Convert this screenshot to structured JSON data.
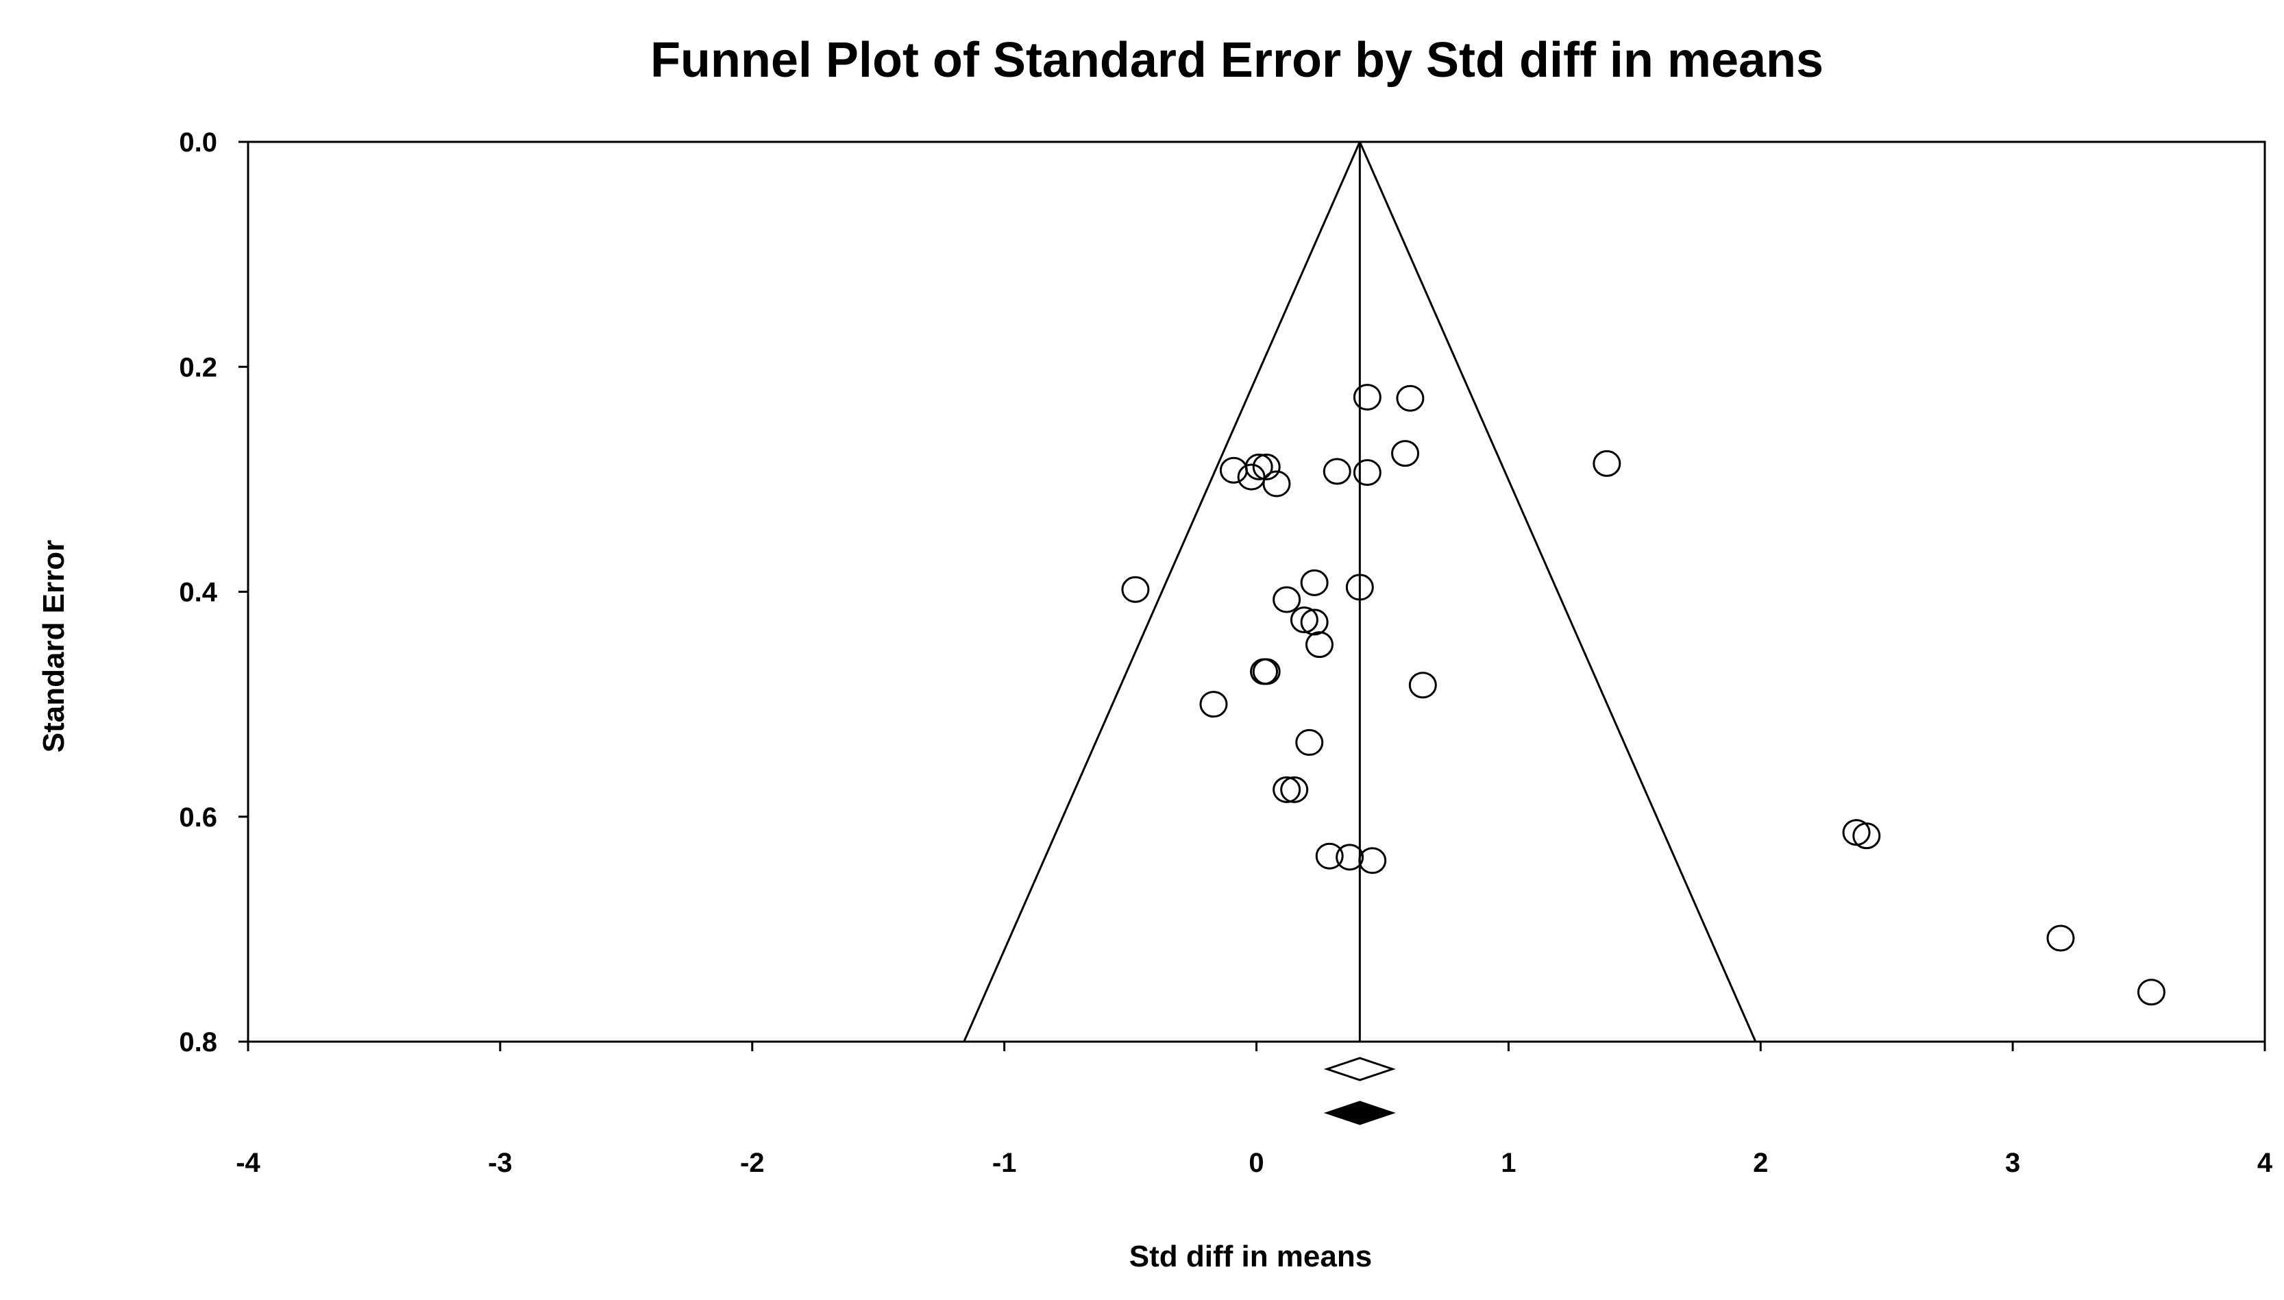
{
  "chart_data": {
    "type": "scatter",
    "title": "Funnel Plot of Standard Error by Std diff in means",
    "xlabel": "Std diff in means",
    "ylabel": "Standard Error",
    "xlim": [
      -4,
      4
    ],
    "ylim": [
      0.0,
      0.8
    ],
    "y_inverted": true,
    "x_ticks": [
      "-4",
      "-3",
      "-2",
      "-1",
      "0",
      "1",
      "2",
      "3",
      "4"
    ],
    "y_ticks": [
      "0.0",
      "0.2",
      "0.4",
      "0.6",
      "0.8"
    ],
    "grid": false,
    "pooled_estimate": 0.41,
    "funnel_limits_at_max_se": [
      -1.16,
      1.98
    ],
    "summary_diamonds": [
      {
        "kind": "observed",
        "fill": "#ffffff",
        "center": 0.41,
        "lower": 0.28,
        "upper": 0.54
      },
      {
        "kind": "adjusted",
        "fill": "#000000",
        "center": 0.41,
        "lower": 0.28,
        "upper": 0.54
      }
    ],
    "points": [
      {
        "x": 0.44,
        "y": 0.227
      },
      {
        "x": 0.61,
        "y": 0.228
      },
      {
        "x": 0.59,
        "y": 0.277
      },
      {
        "x": 1.39,
        "y": 0.286
      },
      {
        "x": -0.09,
        "y": 0.292
      },
      {
        "x": 0.01,
        "y": 0.289
      },
      {
        "x": 0.04,
        "y": 0.289
      },
      {
        "x": -0.02,
        "y": 0.298
      },
      {
        "x": 0.08,
        "y": 0.304
      },
      {
        "x": 0.32,
        "y": 0.293
      },
      {
        "x": 0.44,
        "y": 0.294
      },
      {
        "x": -0.48,
        "y": 0.398
      },
      {
        "x": 0.23,
        "y": 0.392
      },
      {
        "x": 0.41,
        "y": 0.396
      },
      {
        "x": 0.12,
        "y": 0.407
      },
      {
        "x": 0.19,
        "y": 0.425
      },
      {
        "x": 0.23,
        "y": 0.427
      },
      {
        "x": 0.25,
        "y": 0.447
      },
      {
        "x": 0.03,
        "y": 0.471
      },
      {
        "x": 0.04,
        "y": 0.471
      },
      {
        "x": 0.66,
        "y": 0.483
      },
      {
        "x": -0.17,
        "y": 0.5
      },
      {
        "x": 0.21,
        "y": 0.534
      },
      {
        "x": 0.12,
        "y": 0.576
      },
      {
        "x": 0.15,
        "y": 0.576
      },
      {
        "x": 2.38,
        "y": 0.614
      },
      {
        "x": 2.42,
        "y": 0.617
      },
      {
        "x": 0.29,
        "y": 0.635
      },
      {
        "x": 0.37,
        "y": 0.636
      },
      {
        "x": 0.46,
        "y": 0.639
      },
      {
        "x": 3.19,
        "y": 0.708
      },
      {
        "x": 3.55,
        "y": 0.756
      }
    ]
  }
}
